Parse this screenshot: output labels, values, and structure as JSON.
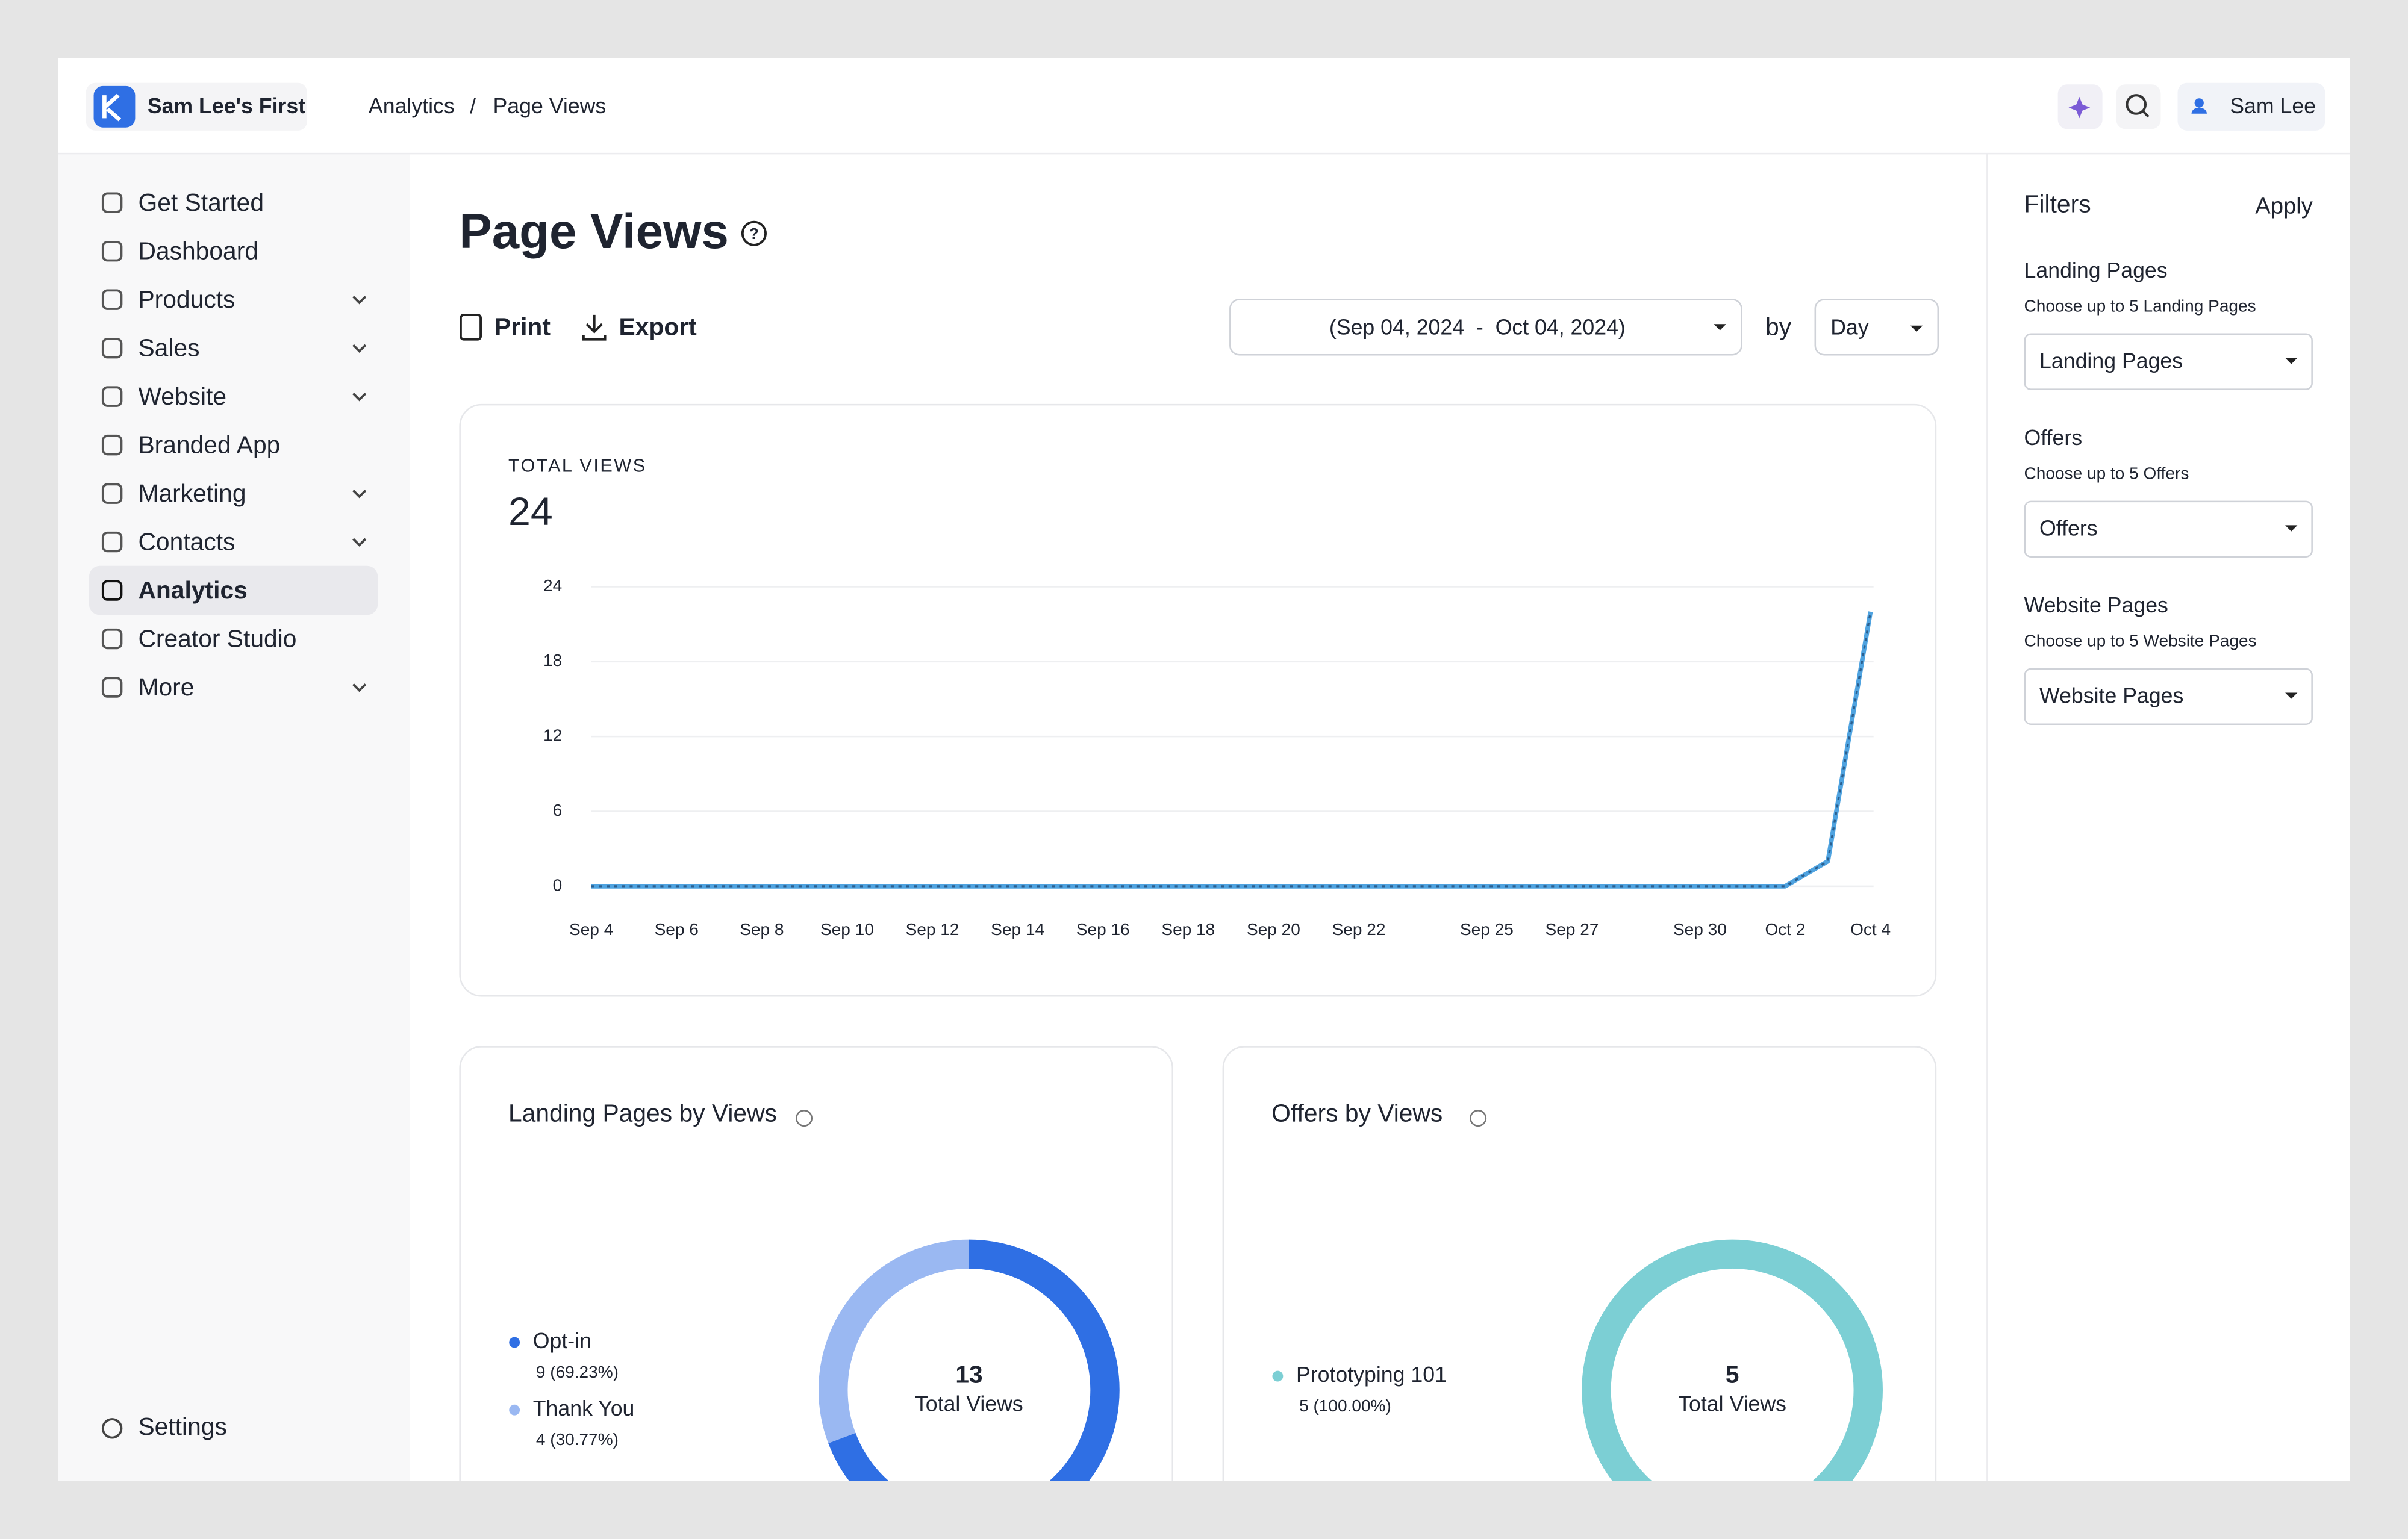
{
  "header": {
    "workspace": "Sam Lee's First",
    "breadcrumb": [
      "Analytics",
      "Page Views"
    ],
    "user": "Sam Lee"
  },
  "sidebar": {
    "items": [
      {
        "label": "Get Started"
      },
      {
        "label": "Dashboard"
      },
      {
        "label": "Products",
        "expandable": true
      },
      {
        "label": "Sales",
        "expandable": true
      },
      {
        "label": "Website",
        "expandable": true
      },
      {
        "label": "Branded App"
      },
      {
        "label": "Marketing",
        "expandable": true
      },
      {
        "label": "Contacts",
        "expandable": true
      },
      {
        "label": "Analytics",
        "active": true
      },
      {
        "label": "Creator Studio"
      },
      {
        "label": "More",
        "expandable": true
      }
    ],
    "settings": "Settings"
  },
  "page": {
    "title": "Page Views",
    "print": "Print",
    "export": "Export",
    "date_range": "(Sep 04, 2024  -  Oct 04, 2024)",
    "by": "by",
    "interval": "Day"
  },
  "filters": {
    "title": "Filters",
    "apply": "Apply",
    "sections": [
      {
        "label": "Landing Pages",
        "hint": "Choose up to 5 Landing Pages",
        "select": "Landing Pages"
      },
      {
        "label": "Offers",
        "hint": "Choose up to 5 Offers",
        "select": "Offers"
      },
      {
        "label": "Website Pages",
        "hint": "Choose up to 5 Website Pages",
        "select": "Website Pages"
      }
    ]
  },
  "chart_data": [
    {
      "type": "line",
      "title": "TOTAL VIEWS",
      "total": 24,
      "categories": [
        "Sep 4",
        null,
        "Sep 6",
        null,
        "Sep 8",
        null,
        "Sep 10",
        null,
        "Sep 12",
        null,
        "Sep 14",
        null,
        "Sep 16",
        null,
        "Sep 18",
        null,
        "Sep 20",
        null,
        "Sep 22",
        null,
        null,
        "Sep 25",
        null,
        "Sep 27",
        null,
        null,
        "Sep 30",
        null,
        "Oct 2",
        null,
        "Oct 4"
      ],
      "values": [
        0,
        0,
        0,
        0,
        0,
        0,
        0,
        0,
        0,
        0,
        0,
        0,
        0,
        0,
        0,
        0,
        0,
        0,
        0,
        0,
        0,
        0,
        0,
        0,
        0,
        0,
        0,
        0,
        0,
        2,
        22
      ],
      "color": "#4fa3e0",
      "ylim": [
        0,
        24
      ],
      "yticks": [
        0,
        6,
        12,
        18,
        24
      ],
      "grid": true
    },
    {
      "type": "pie",
      "title": "Landing Pages by Views",
      "total": 13,
      "total_label": "Total Views",
      "categories": [
        "Opt-in",
        "Thank You"
      ],
      "values": [
        9,
        4
      ],
      "value_labels": [
        "9 (69.23%)",
        "4 (30.77%)"
      ],
      "colors": [
        "#2f6fe4",
        "#9ab8f2"
      ]
    },
    {
      "type": "pie",
      "title": "Offers by Views",
      "total": 5,
      "total_label": "Total Views",
      "categories": [
        "Prototyping 101"
      ],
      "values": [
        5
      ],
      "value_labels": [
        "5 (100.00%)"
      ],
      "colors": [
        "#7ccfd4"
      ]
    }
  ]
}
